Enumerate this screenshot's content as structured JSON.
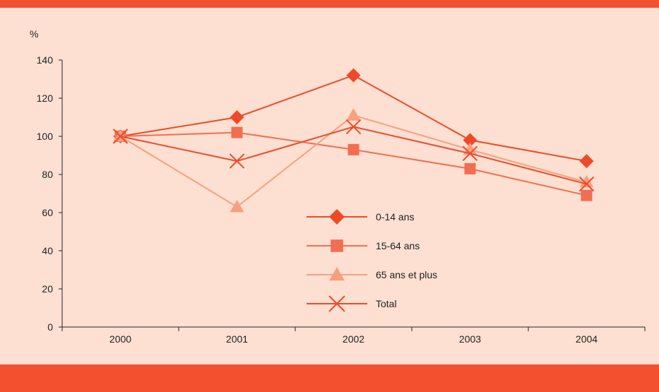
{
  "chart_data": {
    "type": "line",
    "title": "",
    "ylabel": "%",
    "xlabel": "",
    "ylim": [
      0,
      140
    ],
    "yticks": [
      0,
      20,
      40,
      60,
      80,
      100,
      120,
      140
    ],
    "categories": [
      "2000",
      "2001",
      "2002",
      "2003",
      "2004"
    ],
    "legend_position": "center",
    "series": [
      {
        "name": "0-14 ans",
        "marker": "diamond",
        "color": "#ee4a2a",
        "values": [
          100,
          110,
          132,
          98,
          87
        ]
      },
      {
        "name": "15-64 ans",
        "marker": "square",
        "color": "#f26e50",
        "values": [
          100,
          102,
          93,
          83,
          69
        ]
      },
      {
        "name": "65 ans et plus",
        "marker": "triangle",
        "color": "#f6a07f",
        "values": [
          100,
          63,
          111,
          93,
          76
        ]
      },
      {
        "name": "Total",
        "marker": "x",
        "color": "#ee4a2a",
        "values": [
          100,
          87,
          105,
          91,
          75
        ]
      }
    ]
  },
  "colors": {
    "top_bar": "#f2502f",
    "panel_background": "#fde0d2",
    "bottom_bar": "#f2502f",
    "axis": "#222222"
  }
}
